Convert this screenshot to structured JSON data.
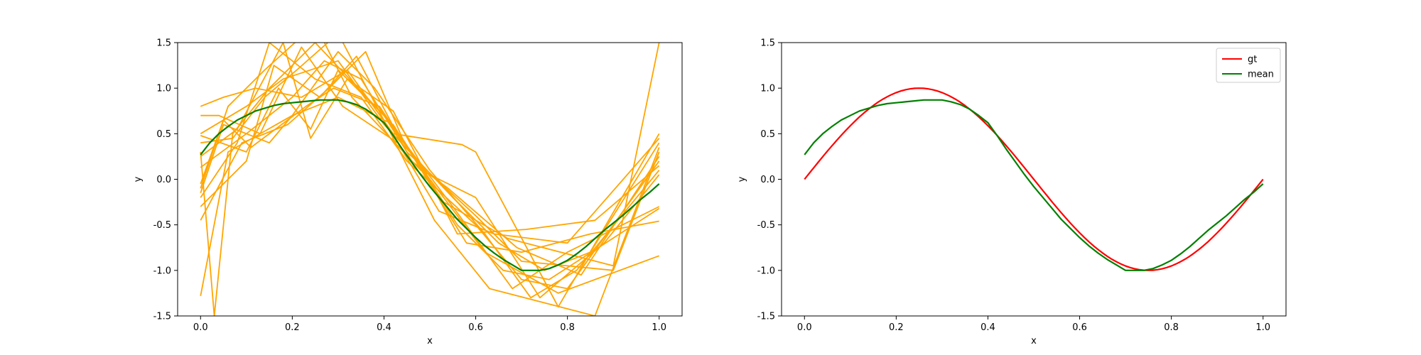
{
  "chart_data": [
    {
      "type": "line",
      "xlabel": "x",
      "ylabel": "y",
      "xlim": [
        -0.05,
        1.05
      ],
      "ylim": [
        -1.5,
        1.5
      ],
      "xticks": [
        "0.0",
        "0.2",
        "0.4",
        "0.6",
        "0.8",
        "1.0"
      ],
      "yticks": [
        "-1.5",
        "-1.0",
        "-0.5",
        "0.0",
        "0.5",
        "1.0",
        "1.5"
      ],
      "grid": false,
      "legend": null,
      "colors": {
        "samples": "#ffa500",
        "mean": "#008000"
      },
      "sample_series": [
        {
          "x": [
            0.0,
            0.1,
            0.18,
            0.3,
            0.4,
            0.55,
            0.65,
            0.75,
            0.85,
            1.0
          ],
          "y": [
            0.5,
            0.8,
            1.1,
            1.3,
            0.6,
            -0.2,
            -0.7,
            -1.0,
            -0.8,
            0.4
          ]
        },
        {
          "x": [
            0.0,
            0.08,
            0.15,
            0.25,
            0.35,
            0.45,
            0.6,
            0.7,
            0.8,
            1.0
          ],
          "y": [
            -0.2,
            0.4,
            1.5,
            1.1,
            0.9,
            0.2,
            -0.5,
            -1.1,
            -1.2,
            0.2
          ]
        },
        {
          "x": [
            0.0,
            0.05,
            0.12,
            0.22,
            0.32,
            0.42,
            0.57,
            0.6,
            0.78,
            1.0
          ],
          "y": [
            0.8,
            0.9,
            1.0,
            0.9,
            1.2,
            0.5,
            0.38,
            0.3,
            -1.4,
            0.5
          ]
        },
        {
          "x": [
            0.0,
            0.06,
            0.2,
            0.3,
            0.38,
            0.5,
            0.62,
            0.72,
            0.82,
            1.0
          ],
          "y": [
            -1.28,
            0.3,
            0.7,
            1.4,
            1.0,
            0.1,
            -0.6,
            -1.3,
            -1.0,
            0.1
          ]
        },
        {
          "x": [
            0.0,
            0.03,
            0.07,
            0.15,
            0.25,
            0.4,
            0.55,
            0.68,
            0.8,
            1.0
          ],
          "y": [
            0.3,
            -1.5,
            0.5,
            1.0,
            1.5,
            0.7,
            -0.3,
            -1.2,
            -0.8,
            -0.3
          ]
        },
        {
          "x": [
            0.0,
            0.1,
            0.2,
            0.27,
            0.35,
            0.45,
            0.6,
            0.7,
            0.9,
            1.0
          ],
          "y": [
            0.13,
            0.5,
            0.9,
            1.3,
            1.1,
            0.3,
            -0.4,
            -0.9,
            -1.0,
            0.3
          ]
        },
        {
          "x": [
            0.0,
            0.05,
            0.15,
            0.2,
            0.3,
            0.42,
            0.58,
            0.7,
            0.85,
            1.0
          ],
          "y": [
            -0.15,
            0.6,
            0.4,
            0.7,
            0.9,
            0.6,
            -0.7,
            -0.8,
            -0.6,
            -0.46
          ]
        },
        {
          "x": [
            0.0,
            0.1,
            0.17,
            0.24,
            0.3,
            0.4,
            0.5,
            0.62,
            0.78,
            1.0
          ],
          "y": [
            0.48,
            0.3,
            1.0,
            0.55,
            1.2,
            0.7,
            0.0,
            -0.8,
            -1.25,
            -0.84
          ]
        },
        {
          "x": [
            0.0,
            0.06,
            0.14,
            0.25,
            0.33,
            0.48,
            0.6,
            0.74,
            0.88,
            1.0
          ],
          "y": [
            -0.1,
            0.8,
            1.2,
            1.7,
            0.9,
            0.1,
            -0.2,
            -1.3,
            -0.7,
            0.05
          ]
        },
        {
          "x": [
            0.0,
            0.09,
            0.19,
            0.28,
            0.36,
            0.44,
            0.56,
            0.66,
            0.76,
            1.0
          ],
          "y": [
            -0.45,
            0.4,
            0.6,
            1.0,
            1.4,
            0.45,
            -0.5,
            -1.0,
            -1.1,
            -0.32
          ]
        },
        {
          "x": [
            0.0,
            0.04,
            0.13,
            0.22,
            0.31,
            0.43,
            0.52,
            0.64,
            0.8,
            1.0
          ],
          "y": [
            0.7,
            0.7,
            0.5,
            1.45,
            0.8,
            0.4,
            -0.35,
            -0.6,
            -0.7,
            0.45
          ]
        },
        {
          "x": [
            0.0,
            0.1,
            0.16,
            0.26,
            0.34,
            0.46,
            0.54,
            0.69,
            0.83,
            1.0
          ],
          "y": [
            -0.3,
            0.2,
            1.25,
            0.9,
            1.35,
            0.2,
            -0.1,
            -0.75,
            -1.05,
            0.25
          ]
        },
        {
          "x": [
            0.0,
            0.07,
            0.14,
            0.21,
            0.3,
            0.41,
            0.51,
            0.63,
            0.86,
            1.0
          ],
          "y": [
            0.4,
            0.45,
            0.9,
            1.2,
            1.6,
            0.55,
            -0.45,
            -1.2,
            -1.5,
            0.35
          ]
        },
        {
          "x": [
            0.0,
            0.05,
            0.11,
            0.23,
            0.29,
            0.39,
            0.53,
            0.67,
            0.9,
            1.0
          ],
          "y": [
            -0.05,
            0.65,
            0.35,
            0.8,
            1.0,
            0.8,
            -0.25,
            -0.65,
            -0.95,
            1.5
          ]
        },
        {
          "x": [
            0.0,
            0.08,
            0.18,
            0.24,
            0.32,
            0.42,
            0.56,
            0.71,
            0.86,
            1.0
          ],
          "y": [
            0.25,
            0.55,
            1.5,
            0.45,
            1.1,
            0.75,
            -0.6,
            -0.55,
            -0.45,
            0.15
          ]
        }
      ],
      "series": [
        {
          "name": "mean",
          "x": [
            0.0,
            0.02,
            0.04,
            0.06,
            0.08,
            0.1,
            0.12,
            0.14,
            0.16,
            0.18,
            0.2,
            0.22,
            0.24,
            0.26,
            0.28,
            0.3,
            0.32,
            0.34,
            0.36,
            0.38,
            0.4,
            0.42,
            0.44,
            0.46,
            0.48,
            0.5,
            0.52,
            0.54,
            0.56,
            0.58,
            0.6,
            0.62,
            0.64,
            0.66,
            0.68,
            0.7,
            0.72,
            0.74,
            0.76,
            0.78,
            0.8,
            0.82,
            0.84,
            0.86,
            0.88,
            0.9,
            0.92,
            0.94,
            0.96,
            0.98,
            1.0
          ],
          "y": [
            0.27,
            0.4,
            0.5,
            0.58,
            0.65,
            0.7,
            0.75,
            0.78,
            0.81,
            0.83,
            0.84,
            0.85,
            0.86,
            0.87,
            0.87,
            0.87,
            0.85,
            0.82,
            0.77,
            0.7,
            0.62,
            0.48,
            0.33,
            0.19,
            0.05,
            -0.08,
            -0.2,
            -0.32,
            -0.44,
            -0.54,
            -0.64,
            -0.73,
            -0.81,
            -0.88,
            -0.94,
            -1.0,
            -1.0,
            -1.0,
            -0.98,
            -0.94,
            -0.89,
            -0.82,
            -0.74,
            -0.65,
            -0.56,
            -0.48,
            -0.4,
            -0.31,
            -0.22,
            -0.14,
            -0.05
          ]
        }
      ]
    },
    {
      "type": "line",
      "xlabel": "x",
      "ylabel": "y",
      "xlim": [
        -0.05,
        1.05
      ],
      "ylim": [
        -1.5,
        1.5
      ],
      "xticks": [
        "0.0",
        "0.2",
        "0.4",
        "0.6",
        "0.8",
        "1.0"
      ],
      "yticks": [
        "-1.5",
        "-1.0",
        "-0.5",
        "0.0",
        "0.5",
        "1.0",
        "1.5"
      ],
      "grid": false,
      "legend": {
        "placement": "top-right",
        "entries": [
          "gt",
          "mean"
        ]
      },
      "series": [
        {
          "name": "gt",
          "color": "#ff0000",
          "function": "sin(2*pi*x)",
          "x_range": [
            0.0,
            1.0
          ]
        },
        {
          "name": "mean",
          "color": "#008000",
          "x": [
            0.0,
            0.02,
            0.04,
            0.06,
            0.08,
            0.1,
            0.12,
            0.14,
            0.16,
            0.18,
            0.2,
            0.22,
            0.24,
            0.26,
            0.28,
            0.3,
            0.32,
            0.34,
            0.36,
            0.38,
            0.4,
            0.42,
            0.44,
            0.46,
            0.48,
            0.5,
            0.52,
            0.54,
            0.56,
            0.58,
            0.6,
            0.62,
            0.64,
            0.66,
            0.68,
            0.7,
            0.72,
            0.74,
            0.76,
            0.78,
            0.8,
            0.82,
            0.84,
            0.86,
            0.88,
            0.9,
            0.92,
            0.94,
            0.96,
            0.98,
            1.0
          ],
          "y": [
            0.27,
            0.4,
            0.5,
            0.58,
            0.65,
            0.7,
            0.75,
            0.78,
            0.81,
            0.83,
            0.84,
            0.85,
            0.86,
            0.87,
            0.87,
            0.87,
            0.85,
            0.82,
            0.77,
            0.7,
            0.62,
            0.48,
            0.33,
            0.19,
            0.05,
            -0.08,
            -0.2,
            -0.32,
            -0.44,
            -0.54,
            -0.64,
            -0.73,
            -0.81,
            -0.88,
            -0.94,
            -1.0,
            -1.0,
            -1.0,
            -0.98,
            -0.94,
            -0.89,
            -0.82,
            -0.74,
            -0.65,
            -0.56,
            -0.48,
            -0.4,
            -0.31,
            -0.22,
            -0.14,
            -0.05
          ]
        }
      ]
    }
  ]
}
